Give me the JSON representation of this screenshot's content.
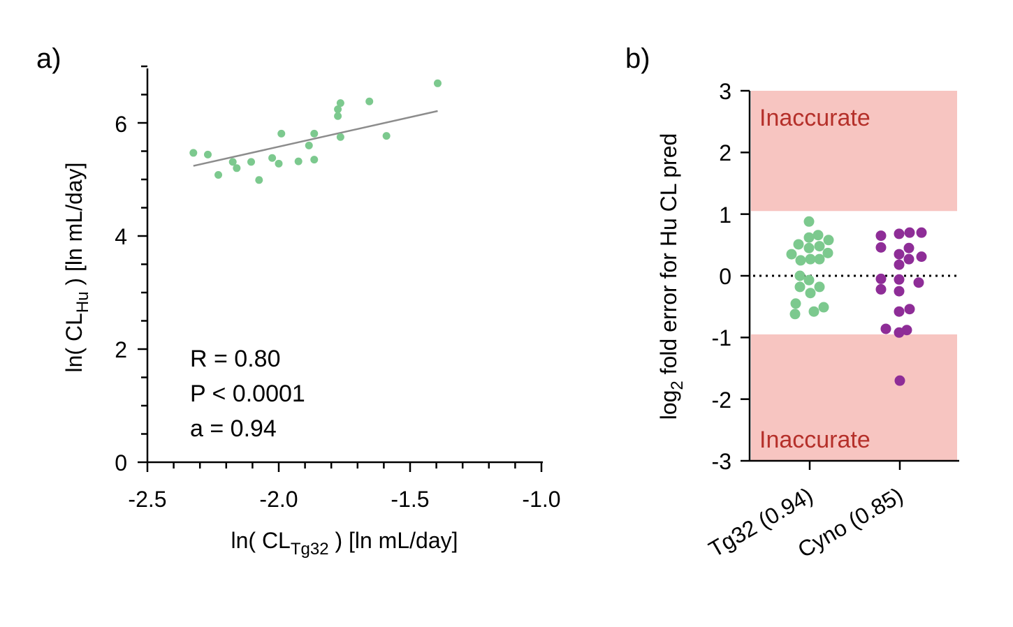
{
  "chart_data": [
    {
      "panel": "a)",
      "type": "scatter",
      "xlabel": "ln( CL",
      "xlabel_sub": "Tg32",
      "xlabel_suffix": ") [ln mL/day]",
      "ylabel": "ln( CL",
      "ylabel_sub": "Hu",
      "ylabel_suffix": ") [ln mL/day]",
      "xlim": [
        -2.5,
        -1.0
      ],
      "ylim": [
        0,
        7
      ],
      "x_ticks": [
        "-2.5",
        "-2.0",
        "-1.5",
        "-1.0"
      ],
      "y_ticks": [
        "0",
        "2",
        "4",
        "6"
      ],
      "series": [
        {
          "color": "#7cc98e",
          "points": [
            [
              -2.325,
              5.47
            ],
            [
              -2.27,
              5.44
            ],
            [
              -2.23,
              5.08
            ],
            [
              -2.175,
              5.31
            ],
            [
              -2.16,
              5.2
            ],
            [
              -2.105,
              5.31
            ],
            [
              -2.075,
              4.99
            ],
            [
              -2.025,
              5.38
            ],
            [
              -2.0,
              5.28
            ],
            [
              -1.99,
              5.81
            ],
            [
              -1.925,
              5.32
            ],
            [
              -1.885,
              5.6
            ],
            [
              -1.865,
              5.35
            ],
            [
              -1.865,
              5.81
            ],
            [
              -1.775,
              6.24
            ],
            [
              -1.775,
              6.12
            ],
            [
              -1.765,
              6.35
            ],
            [
              -1.765,
              5.75
            ],
            [
              -1.655,
              6.38
            ],
            [
              -1.59,
              5.77
            ],
            [
              -1.395,
              6.7
            ]
          ]
        }
      ],
      "fit_line": {
        "x": [
          -2.325,
          -1.395
        ],
        "y": [
          5.24,
          6.21
        ],
        "color": "#8c8c8c"
      },
      "stats": [
        "R = 0.80",
        "P < 0.0001",
        "a = 0.94"
      ]
    },
    {
      "panel": "b)",
      "type": "scatter",
      "ylabel_prefix": "log",
      "ylabel_sub": "2",
      "ylabel_suffix": " fold error for Hu CL pred",
      "ylim": [
        -3,
        3
      ],
      "y_ticks": [
        "3",
        "2",
        "1",
        "0",
        "-1",
        "-2",
        "-3"
      ],
      "categories": [
        "Tg32 (0.94)",
        "Cyno (0.85)"
      ],
      "zone_label": "Inaccurate",
      "zone_color": "#f7c5c1",
      "zone_text_color": "#b5302a",
      "zones": [
        [
          1.05,
          3.0
        ],
        [
          -3.0,
          -0.95
        ]
      ],
      "reference_line": 0,
      "series": [
        {
          "category": "Tg32 (0.94)",
          "color": "#7cc98e",
          "points": [
            [
              -0.01,
              0.88
            ],
            [
              -0.16,
              0.51
            ],
            [
              0.12,
              0.66
            ],
            [
              -0.01,
              0.62
            ],
            [
              0.14,
              0.48
            ],
            [
              0.27,
              0.58
            ],
            [
              0.26,
              0.37
            ],
            [
              -0.26,
              0.35
            ],
            [
              -0.13,
              0.25
            ],
            [
              0.01,
              0.27
            ],
            [
              0.14,
              0.27
            ],
            [
              -0.01,
              0.45
            ],
            [
              -0.14,
              0.0
            ],
            [
              -0.01,
              -0.07
            ],
            [
              0.14,
              -0.18
            ],
            [
              -0.14,
              -0.18
            ],
            [
              0.01,
              -0.28
            ],
            [
              -0.2,
              -0.45
            ],
            [
              0.2,
              -0.51
            ],
            [
              0.06,
              -0.58
            ],
            [
              -0.21,
              -0.62
            ]
          ]
        },
        {
          "category": "Cyno (0.85)",
          "color": "#8e2d97",
          "points": [
            [
              -0.27,
              0.65
            ],
            [
              -0.01,
              0.68
            ],
            [
              0.14,
              0.7
            ],
            [
              0.31,
              0.7
            ],
            [
              -0.27,
              0.46
            ],
            [
              0.13,
              0.45
            ],
            [
              -0.01,
              0.35
            ],
            [
              0.13,
              0.27
            ],
            [
              0.31,
              0.31
            ],
            [
              -0.01,
              0.18
            ],
            [
              -0.27,
              -0.05
            ],
            [
              0.27,
              -0.11
            ],
            [
              -0.01,
              -0.06
            ],
            [
              -0.01,
              -0.25
            ],
            [
              -0.27,
              -0.22
            ],
            [
              -0.01,
              -0.58
            ],
            [
              0.14,
              -0.54
            ],
            [
              -0.2,
              -0.86
            ],
            [
              0.1,
              -0.88
            ],
            [
              -0.01,
              -0.92
            ],
            [
              0.0,
              -1.7
            ]
          ]
        }
      ]
    }
  ]
}
